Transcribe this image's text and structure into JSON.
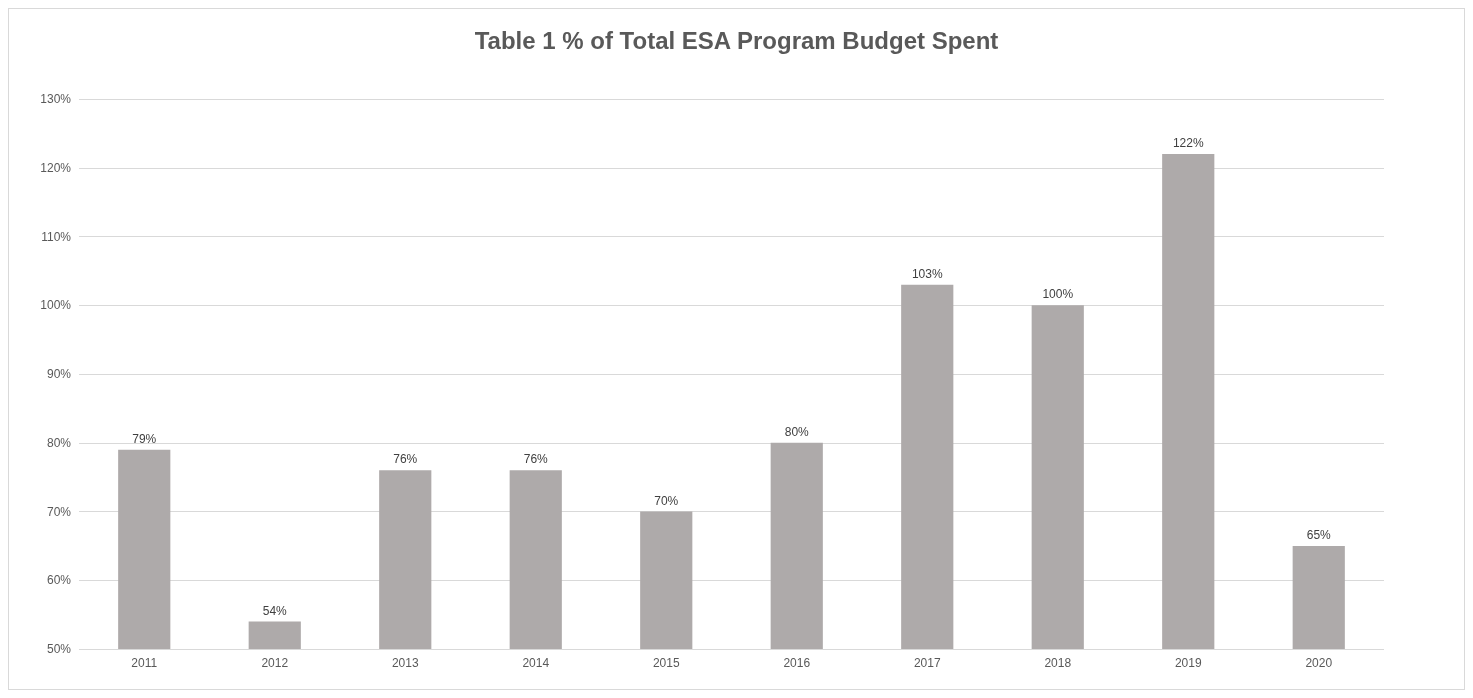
{
  "chart_data": {
    "type": "bar",
    "title": "Table 1 % of Total ESA Program Budget Spent",
    "categories": [
      "2011",
      "2012",
      "2013",
      "2014",
      "2015",
      "2016",
      "2017",
      "2018",
      "2019",
      "2020"
    ],
    "values": [
      79,
      54,
      76,
      76,
      70,
      80,
      103,
      100,
      122,
      65
    ],
    "value_labels": [
      "79%",
      "54%",
      "76%",
      "76%",
      "70%",
      "80%",
      "103%",
      "100%",
      "122%",
      "65%"
    ],
    "color": "#aeaaaa",
    "ylim": [
      50,
      130
    ],
    "yticks": [
      {
        "value": 50,
        "label": "50%"
      },
      {
        "value": 60,
        "label": "60%"
      },
      {
        "value": 70,
        "label": "70%"
      },
      {
        "value": 80,
        "label": "80%"
      },
      {
        "value": 90,
        "label": "90%"
      },
      {
        "value": 100,
        "label": "100%"
      },
      {
        "value": 110,
        "label": "110%"
      },
      {
        "value": 120,
        "label": "120%"
      },
      {
        "value": 130,
        "label": "130%"
      }
    ],
    "grid": "y"
  }
}
